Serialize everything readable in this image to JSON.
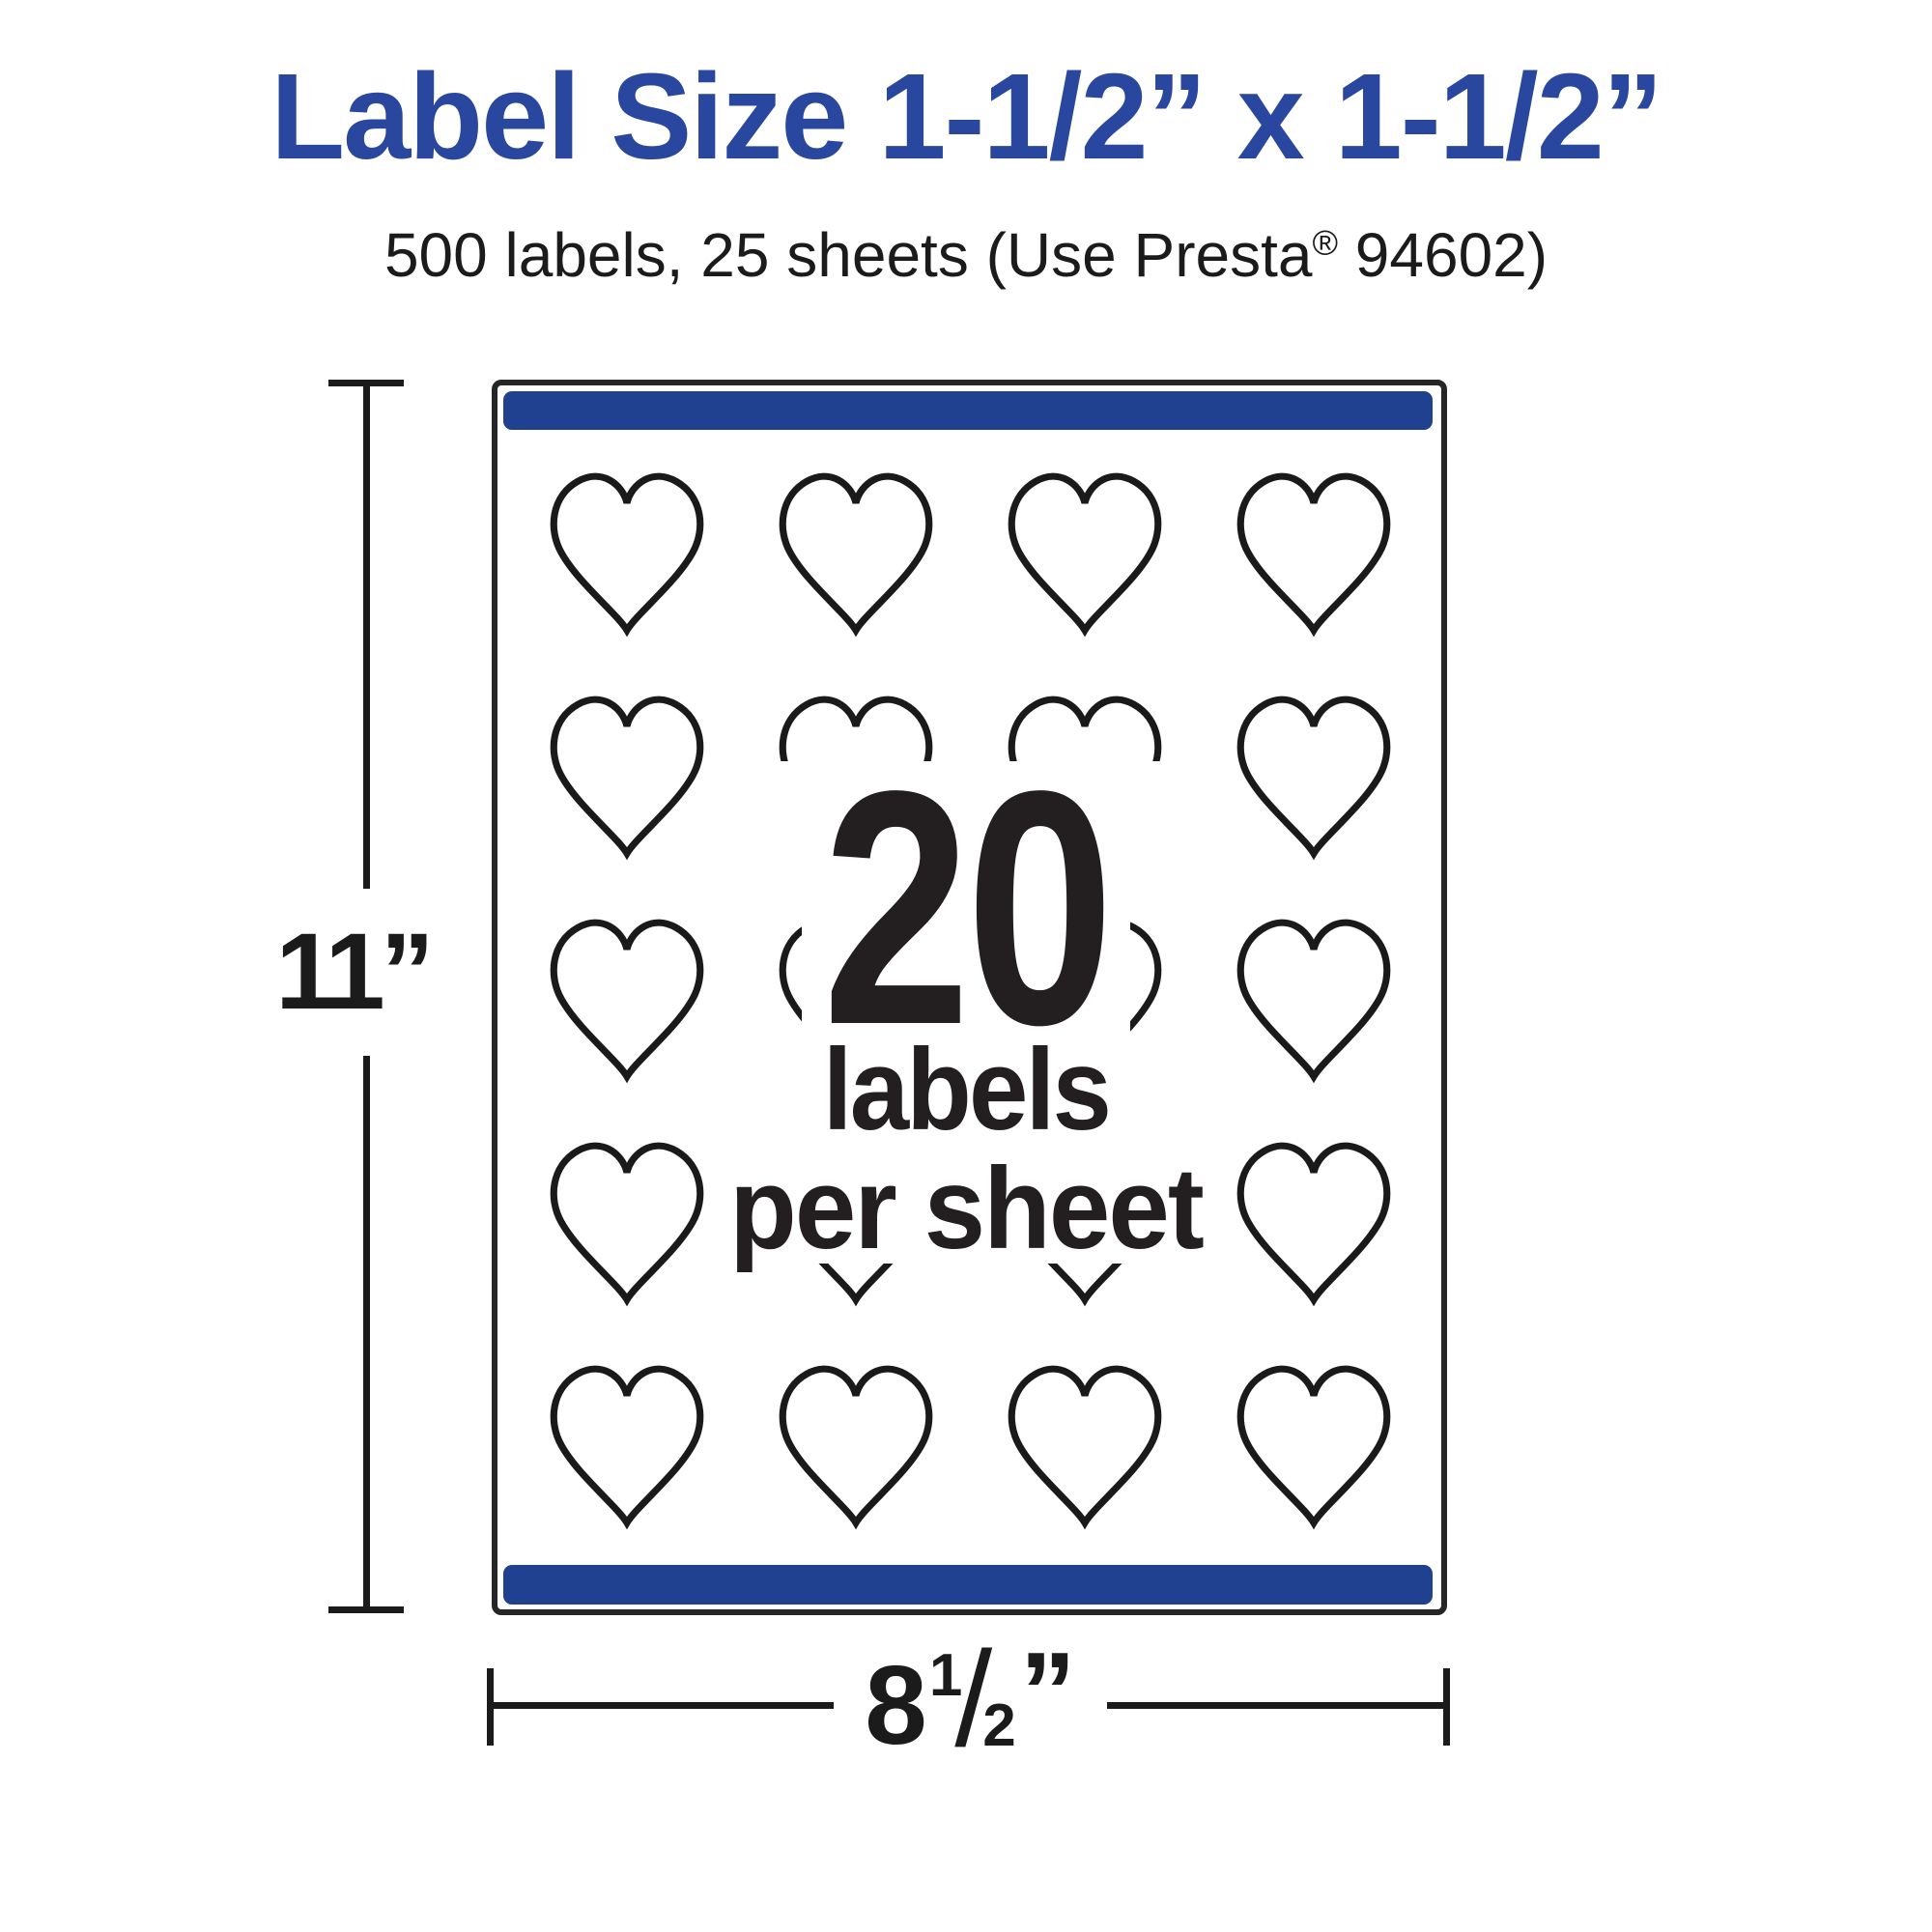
{
  "header": {
    "title": "Label Size 1-1/2” x 1-1/2”",
    "subtitle_pre": "500 labels, 25 sheets (Use Presta",
    "subtitle_reg_mark": "®",
    "subtitle_post": " 94602)"
  },
  "sheet": {
    "labels_per_sheet_count": "20",
    "labels_word": "labels",
    "per_sheet_words": "per sheet",
    "grid_rows": 5,
    "grid_cols": 4,
    "shape": "heart-label"
  },
  "dimensions": {
    "height_label": "11”",
    "width_whole": "8",
    "width_frac_numerator": "1",
    "width_frac_slash": "/",
    "width_frac_denominator": "2",
    "width_quote": "”"
  },
  "colors": {
    "accent_blue": "#2a47a0",
    "bar_blue": "#204190",
    "ink": "#1b1b1b"
  }
}
